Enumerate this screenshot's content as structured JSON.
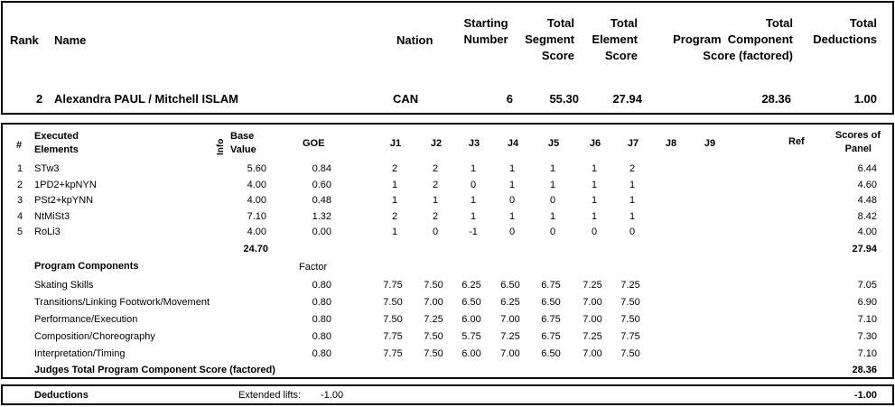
{
  "header": {
    "rank_label": "Rank",
    "name_label": "Name",
    "nation_label": "Nation",
    "starting_number_label": [
      "Starting",
      "Number"
    ],
    "tss_label": [
      "Total",
      "Segment",
      "Score"
    ],
    "tes_label": [
      "Total",
      "Element",
      "Score"
    ],
    "pcs_label": [
      "Total",
      "Program  Component",
      "Score (factored)"
    ],
    "ded_label": [
      "Total",
      "Deductions"
    ]
  },
  "skater": {
    "rank": "2",
    "name": "Alexandra PAUL / Mitchell ISLAM",
    "nation": "CAN",
    "starting_number": "6",
    "total_segment_score": "55.30",
    "total_element_score": "27.94",
    "total_pcs": "28.36",
    "total_deductions": "1.00"
  },
  "elements_header": {
    "num": "#",
    "executed": [
      "Executed",
      "Elements"
    ],
    "info": "Info",
    "base": [
      "Base",
      "Value"
    ],
    "goe": "GOE",
    "judges": [
      "J1",
      "J2",
      "J3",
      "J4",
      "J5",
      "J6",
      "J7",
      "J8",
      "J9"
    ],
    "ref": "Ref",
    "scores": [
      "Scores of",
      "Panel"
    ]
  },
  "elements": [
    {
      "num": "1",
      "name": "STw3",
      "base": "5.60",
      "goe": "0.84",
      "j": [
        "2",
        "2",
        "1",
        "1",
        "1",
        "1",
        "2"
      ],
      "score": "6.44"
    },
    {
      "num": "2",
      "name": "1PD2+kpNYN",
      "base": "4.00",
      "goe": "0.60",
      "j": [
        "1",
        "2",
        "0",
        "1",
        "1",
        "1",
        "1"
      ],
      "score": "4.60"
    },
    {
      "num": "3",
      "name": "PSt2+kpYNN",
      "base": "4.00",
      "goe": "0.48",
      "j": [
        "1",
        "1",
        "1",
        "0",
        "0",
        "1",
        "1"
      ],
      "score": "4.48"
    },
    {
      "num": "4",
      "name": "NtMiSt3",
      "base": "7.10",
      "goe": "1.32",
      "j": [
        "2",
        "2",
        "1",
        "1",
        "1",
        "1",
        "1"
      ],
      "score": "8.42"
    },
    {
      "num": "5",
      "name": "RoLi3",
      "base": "4.00",
      "goe": "0.00",
      "j": [
        "1",
        "0",
        "-1",
        "0",
        "0",
        "0",
        "0"
      ],
      "score": "4.00"
    }
  ],
  "elements_total": {
    "base": "24.70",
    "score": "27.94"
  },
  "pc_header": {
    "label": "Program Components",
    "factor": "Factor"
  },
  "components": [
    {
      "name": "Skating Skills",
      "factor": "0.80",
      "j": [
        "7.75",
        "7.50",
        "6.25",
        "6.50",
        "6.75",
        "7.25",
        "7.25"
      ],
      "score": "7.05"
    },
    {
      "name": "Transitions/Linking Footwork/Movement",
      "factor": "0.80",
      "j": [
        "7.50",
        "7.00",
        "6.50",
        "6.25",
        "6.50",
        "7.00",
        "7.50"
      ],
      "score": "6.90"
    },
    {
      "name": "Performance/Execution",
      "factor": "0.80",
      "j": [
        "7.50",
        "7.25",
        "6.00",
        "7.00",
        "6.75",
        "7.00",
        "7.50"
      ],
      "score": "7.10"
    },
    {
      "name": "Composition/Choreography",
      "factor": "0.80",
      "j": [
        "7.75",
        "7.50",
        "5.75",
        "7.25",
        "6.75",
        "7.25",
        "7.75"
      ],
      "score": "7.30"
    },
    {
      "name": "Interpretation/Timing",
      "factor": "0.80",
      "j": [
        "7.75",
        "7.50",
        "6.00",
        "7.00",
        "6.50",
        "7.00",
        "7.50"
      ],
      "score": "7.10"
    }
  ],
  "pc_total": {
    "label": "Judges Total Program Component Score (factored)",
    "score": "28.36"
  },
  "deductions": {
    "label": "Deductions",
    "item_label": "Extended lifts:",
    "item_value": "-1.00",
    "total": "-1.00"
  }
}
